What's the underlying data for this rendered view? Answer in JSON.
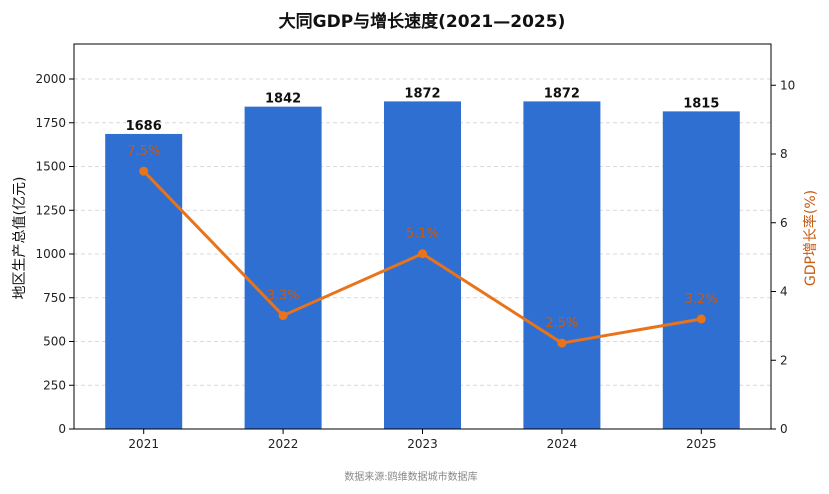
{
  "chart_data": {
    "type": "bar+line",
    "title": "大同GDP与增长速度(2021—2025)",
    "categories": [
      "2021",
      "2022",
      "2023",
      "2024",
      "2025"
    ],
    "bar_series": {
      "values": [
        1686,
        1842,
        1872,
        1872,
        1815
      ],
      "value_labels": [
        "1686",
        "1842",
        "1872",
        "1872",
        "1815"
      ],
      "color": "#2f6fd1",
      "axis": "left"
    },
    "line_series": {
      "values": [
        7.5,
        3.3,
        5.1,
        2.5,
        3.2
      ],
      "value_labels": [
        "7.5%",
        "3.3%",
        "5.1%",
        "2.5%",
        "3.2%"
      ],
      "color": "#e8731a",
      "axis": "right"
    },
    "ylabel_left": "地区生产总值(亿元)",
    "ylabel_right": "GDP增长率(%)",
    "ylim_left": [
      0,
      2200
    ],
    "yticks_left": [
      "0",
      "250",
      "500",
      "750",
      "1000",
      "1250",
      "1500",
      "1750",
      "2000"
    ],
    "ylim_right": [
      0,
      11.2
    ],
    "yticks_right": [
      "0",
      "2",
      "4",
      "6",
      "8",
      "10"
    ],
    "grid": "horizontal dashed",
    "source": "数据来源:鸥维数据城市数据库"
  }
}
